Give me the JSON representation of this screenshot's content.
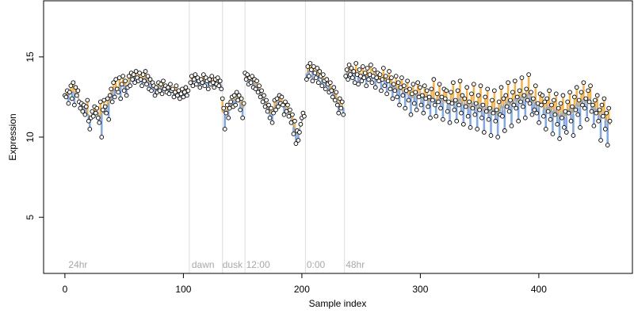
{
  "chart_data": {
    "type": "scatter",
    "title": "",
    "xlabel": "Sample index",
    "ylabel": "Expression",
    "xlim": [
      -18,
      479
    ],
    "ylim": [
      1.5,
      18.5
    ],
    "x_ticks": [
      0,
      100,
      200,
      300,
      400
    ],
    "y_ticks": [
      5,
      10,
      15
    ],
    "grid": false,
    "legend": "none",
    "colors": {
      "points_fill": "#ffffff",
      "points_stroke": "#000000",
      "fit_line": "#a6a6a6",
      "above_fill": "#f2a833",
      "below_fill": "#6f9ad8",
      "vline": "#dcdcdc",
      "annotation_text": "#a8a8a8"
    },
    "annotations": [
      {
        "label": "24hr",
        "x": 3
      },
      {
        "label": "dawn",
        "x": 107
      },
      {
        "label": "dusk",
        "x": 133
      },
      {
        "label": "12:00",
        "x": 153
      },
      {
        "label": "0:00",
        "x": 204
      },
      {
        "label": "48hr",
        "x": 237
      }
    ],
    "vlines": [
      105,
      133,
      152,
      203,
      236
    ],
    "segments": [
      {
        "x_start": 0,
        "x_end": 104,
        "points": [
          12.6,
          12.5,
          12.9,
          12.1,
          12.8,
          13.2,
          12.4,
          13.4,
          12.0,
          13.1,
          12.6,
          12.9,
          12.2,
          11.8,
          12.1,
          11.6,
          12.0,
          11.4,
          11.9,
          12.3,
          11.0,
          10.5,
          11.2,
          11.6,
          11.3,
          11.9,
          11.5,
          11.8,
          11.2,
          10.9,
          12.2,
          10.0,
          11.7,
          12.3,
          11.9,
          11.5,
          12.4,
          11.1,
          12.6,
          13.0,
          12.2,
          13.4,
          12.5,
          13.6,
          13.0,
          12.8,
          13.7,
          12.4,
          13.3,
          13.8,
          12.9,
          13.5,
          12.6,
          13.1,
          13.8,
          13.2,
          14.0,
          13.6,
          13.9,
          13.4,
          14.1,
          13.7,
          13.5,
          14.0,
          13.6,
          13.2,
          13.9,
          13.5,
          14.1,
          13.3,
          13.8,
          13.0,
          13.6,
          12.9,
          13.4,
          13.2,
          12.6,
          13.1,
          12.8,
          13.4,
          12.9,
          13.3,
          12.7,
          13.5,
          13.0,
          13.2,
          12.8,
          13.1,
          12.7,
          13.3,
          12.9,
          13.0,
          12.5,
          12.8,
          13.2,
          12.6,
          12.9,
          12.4,
          12.7,
          13.0,
          12.5,
          12.8,
          13.1,
          12.6,
          12.9
        ]
      },
      {
        "x_start": 106,
        "x_end": 132,
        "points": [
          13.4,
          13.8,
          13.2,
          13.6,
          13.9,
          13.3,
          13.7,
          13.5,
          13.1,
          13.6,
          13.4,
          13.9,
          13.2,
          13.7,
          13.5,
          13.0,
          13.6,
          13.3,
          13.8,
          13.4,
          13.1,
          13.6,
          13.3,
          13.7,
          13.2,
          13.5,
          13.0
        ]
      },
      {
        "x_start": 133,
        "x_end": 151,
        "points": [
          12.4,
          11.8,
          10.5,
          11.5,
          12.0,
          11.2,
          11.8,
          12.2,
          12.5,
          11.9,
          12.6,
          12.0,
          12.8,
          12.3,
          12.6,
          11.7,
          12.4,
          11.2,
          12.1
        ]
      },
      {
        "x_start": 152,
        "x_end": 202,
        "points": [
          14.0,
          13.6,
          13.9,
          13.3,
          13.7,
          13.4,
          13.8,
          13.1,
          13.6,
          13.0,
          13.5,
          12.8,
          13.2,
          12.5,
          12.9,
          12.2,
          12.6,
          11.9,
          12.3,
          11.6,
          12.0,
          11.2,
          11.8,
          10.9,
          11.5,
          12.3,
          11.7,
          12.4,
          11.9,
          12.6,
          12.1,
          12.5,
          12.0,
          11.4,
          12.2,
          11.6,
          12.0,
          11.3,
          11.7,
          10.9,
          11.4,
          10.2,
          11.0,
          9.6,
          10.4,
          9.8,
          10.3,
          10.8,
          11.2,
          11.5,
          11.3
        ]
      },
      {
        "x_start": 204,
        "x_end": 235,
        "points": [
          13.6,
          14.4,
          13.8,
          14.6,
          14.2,
          13.5,
          14.4,
          14.0,
          13.7,
          14.3,
          13.4,
          14.1,
          13.8,
          13.2,
          13.9,
          13.5,
          13.0,
          13.6,
          13.3,
          12.8,
          13.4,
          12.9,
          12.5,
          13.1,
          12.3,
          12.8,
          12.0,
          11.5,
          12.4,
          11.8,
          12.2,
          11.4
        ]
      },
      {
        "x_start": 237,
        "x_end": 460,
        "points": [
          13.8,
          14.2,
          13.6,
          14.5,
          13.9,
          14.3,
          13.7,
          14.1,
          13.4,
          14.6,
          13.9,
          13.3,
          14.2,
          13.8,
          13.5,
          14.4,
          13.7,
          14.0,
          13.2,
          14.3,
          13.6,
          13.9,
          14.5,
          13.4,
          13.8,
          14.2,
          13.1,
          13.7,
          14.0,
          13.5,
          13.9,
          12.9,
          13.6,
          14.3,
          13.2,
          13.8,
          12.7,
          13.5,
          14.1,
          13.0,
          13.7,
          12.4,
          13.3,
          12.9,
          13.8,
          12.5,
          13.4,
          12.0,
          13.1,
          13.7,
          12.6,
          13.2,
          11.8,
          12.9,
          13.5,
          12.3,
          13.0,
          11.4,
          12.7,
          13.3,
          12.1,
          12.8,
          11.7,
          13.4,
          12.5,
          13.1,
          12.0,
          12.6,
          11.5,
          13.2,
          12.4,
          12.9,
          11.9,
          12.5,
          11.2,
          13.0,
          12.3,
          13.6,
          12.0,
          11.3,
          12.7,
          12.2,
          13.3,
          11.8,
          12.5,
          11.1,
          13.0,
          12.4,
          12.9,
          11.6,
          12.2,
          10.9,
          12.8,
          12.1,
          13.4,
          11.7,
          12.3,
          11.0,
          12.9,
          12.0,
          13.5,
          11.5,
          12.6,
          10.8,
          12.4,
          11.9,
          13.1,
          11.3,
          12.2,
          10.6,
          12.7,
          11.8,
          13.3,
          11.4,
          12.1,
          10.5,
          12.6,
          11.7,
          13.2,
          11.2,
          12.0,
          10.3,
          12.5,
          11.6,
          13.0,
          11.1,
          11.8,
          10.1,
          12.3,
          11.5,
          12.9,
          11.0,
          11.7,
          10.0,
          12.2,
          11.4,
          13.1,
          11.3,
          12.4,
          10.4,
          12.6,
          11.9,
          13.4,
          11.6,
          12.3,
          10.7,
          12.8,
          12.0,
          13.5,
          11.8,
          12.5,
          11.0,
          12.9,
          12.2,
          13.7,
          11.9,
          12.6,
          11.2,
          13.0,
          12.3,
          13.9,
          12.1,
          12.8,
          11.4,
          12.4,
          11.7,
          13.2,
          11.5,
          12.1,
          10.9,
          12.7,
          12.0,
          12.6,
          11.3,
          12.2,
          10.5,
          12.4,
          11.6,
          12.9,
          11.1,
          12.0,
          10.2,
          12.3,
          11.4,
          12.7,
          10.8,
          11.8,
          9.9,
          12.1,
          11.2,
          12.6,
          10.6,
          11.6,
          10.3,
          12.2,
          11.5,
          12.8,
          11.0,
          11.9,
          10.1,
          12.5,
          11.7,
          13.1,
          11.4,
          12.3,
          10.6,
          12.8,
          12.0,
          13.4,
          11.8,
          12.4,
          11.1,
          12.9,
          12.2,
          13.2,
          11.6,
          12.0,
          10.7,
          12.3,
          11.5,
          12.6,
          11.0,
          11.7,
          9.8,
          12.0,
          11.3,
          12.4,
          10.5,
          11.5,
          9.5,
          11.8,
          11.0
        ]
      }
    ]
  }
}
